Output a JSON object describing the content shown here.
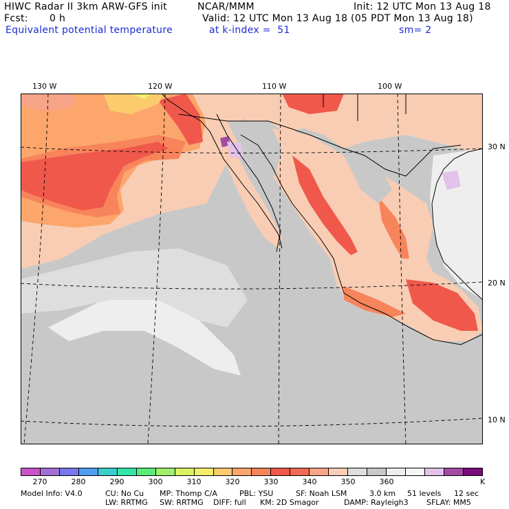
{
  "header": {
    "title": "HIWC Radar II 3km ARW-GFS init",
    "org": "NCAR/MMM",
    "init": "Init: 12 UTC Mon 13 Aug 18",
    "fcst_label": "Fcst:",
    "fcst_value": "0 h",
    "valid": "Valid: 12 UTC Mon 13 Aug 18 (05 PDT Mon 13 Aug 18)",
    "field": "Equivalent potential temperature",
    "level": "at k-index =  51",
    "smooth": "sm= 2"
  },
  "map": {
    "lon_labels": [
      "130 W",
      "120 W",
      "110 W",
      "100 W"
    ],
    "lat_labels": [
      "30 N",
      "20 N",
      "10 N"
    ]
  },
  "colorbar": {
    "unit": "K",
    "ticks": [
      "270",
      "280",
      "290",
      "300",
      "310",
      "320",
      "330",
      "340",
      "350",
      "360"
    ],
    "colors": [
      "#c855c8",
      "#a46ed8",
      "#7878ee",
      "#4f9ef0",
      "#3ccccc",
      "#32e6a6",
      "#5aec78",
      "#9ef06a",
      "#dcf064",
      "#f2ee6a",
      "#fccc6c",
      "#fca66c",
      "#f8845c",
      "#f0584c",
      "#f46a52",
      "#f8a488",
      "#f8cdb4",
      "#dedede",
      "#c8c8c8",
      "#eeeeee",
      "#f4f4f4",
      "#e2c2ea",
      "#a44aa4",
      "#7a0a7a"
    ]
  },
  "footer": {
    "model_info": "Model Info: V4.0",
    "cu": "CU: No Cu",
    "mp": "MP: Thomp C/A",
    "pbl": "PBL: YSU",
    "sf": "SF: Noah LSM",
    "res": "3.0 km",
    "levels": "51 levels",
    "dt": "12 sec",
    "lw": "LW: RRTMG",
    "sw": "SW: RRTMG",
    "diff": "DIFF: full",
    "km": "KM: 2D Smagor",
    "damp": "DAMP: Rayleigh3",
    "sflay": "SFLAY: MM5"
  }
}
